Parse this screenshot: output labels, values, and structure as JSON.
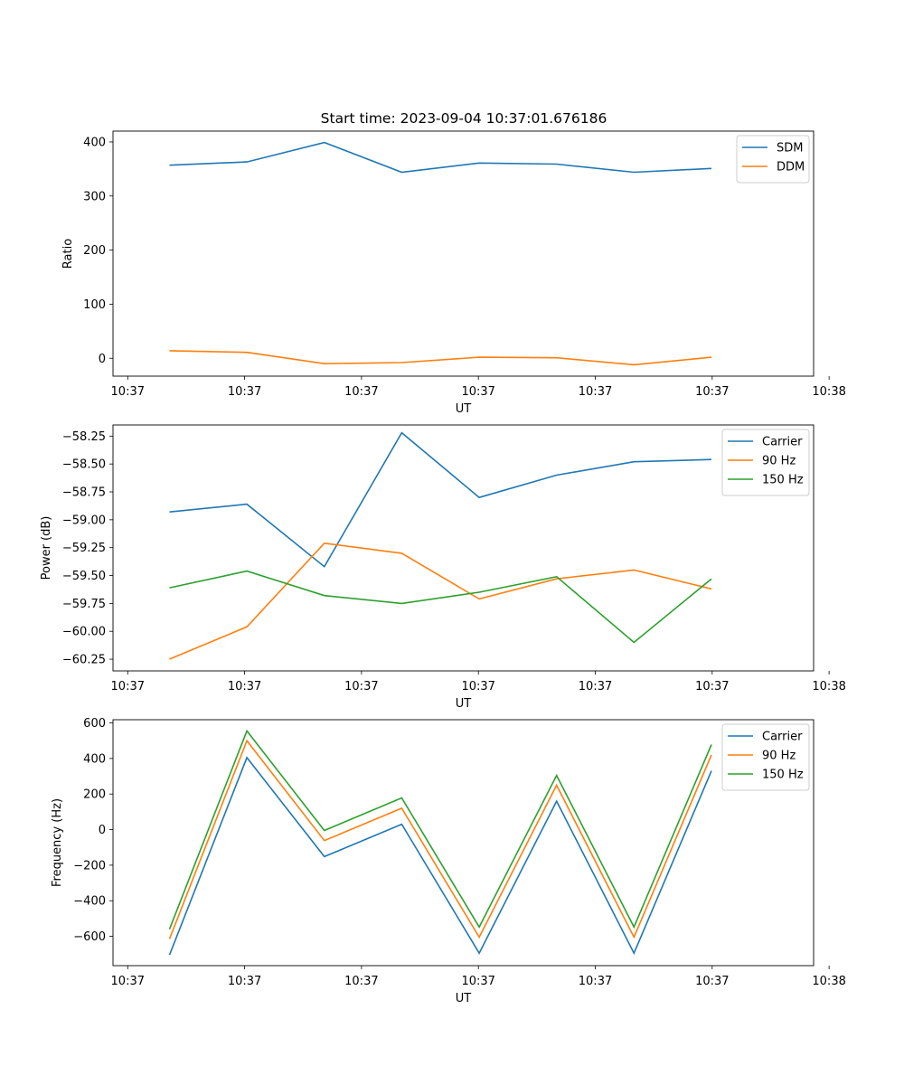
{
  "title": "Start time: 2023-09-04 10:37:01.676186",
  "chart_data": [
    {
      "type": "line",
      "ylabel": "Ratio",
      "xlabel": "UT",
      "x": [
        1,
        2,
        3,
        4,
        5,
        6,
        7,
        8
      ],
      "xlim": [
        0.27,
        9.32
      ],
      "xticks": [
        0.46,
        1.97,
        3.48,
        4.99,
        6.5,
        8.01,
        9.52
      ],
      "xtick_labels": [
        "10:37",
        "10:37",
        "10:37",
        "10:37",
        "10:37",
        "10:37",
        "10:38"
      ],
      "ylim": [
        -33,
        420
      ],
      "yticks": [
        0,
        100,
        200,
        300,
        400
      ],
      "ytick_labels": [
        "0",
        "100",
        "200",
        "300",
        "400"
      ],
      "legend_position": "top-right",
      "series": [
        {
          "name": "SDM",
          "color": "#1f77b4",
          "values": [
            357,
            363,
            399,
            344,
            361,
            359,
            344,
            351
          ]
        },
        {
          "name": "DDM",
          "color": "#ff7f0e",
          "values": [
            14,
            11,
            -10,
            -8,
            2,
            1,
            -12,
            2
          ]
        }
      ]
    },
    {
      "type": "line",
      "ylabel": "Power (dB)",
      "xlabel": "UT",
      "x": [
        1,
        2,
        3,
        4,
        5,
        6,
        7,
        8
      ],
      "xlim": [
        0.27,
        9.32
      ],
      "xticks": [
        0.46,
        1.97,
        3.48,
        4.99,
        6.5,
        8.01,
        9.52
      ],
      "xtick_labels": [
        "10:37",
        "10:37",
        "10:37",
        "10:37",
        "10:37",
        "10:37",
        "10:38"
      ],
      "ylim": [
        -60.355,
        -58.15
      ],
      "yticks": [
        -60.25,
        -60.0,
        -59.75,
        -59.5,
        -59.25,
        -59.0,
        -58.75,
        -58.5,
        -58.25
      ],
      "ytick_labels": [
        "−60.25",
        "−60.00",
        "−59.75",
        "−59.50",
        "−59.25",
        "−59.00",
        "−58.75",
        "−58.50",
        "−58.25"
      ],
      "legend_position": "top-right",
      "series": [
        {
          "name": "Carrier",
          "color": "#1f77b4",
          "values": [
            -58.93,
            -58.86,
            -59.42,
            -58.22,
            -58.8,
            -58.6,
            -58.48,
            -58.46
          ]
        },
        {
          "name": "90 Hz",
          "color": "#ff7f0e",
          "values": [
            -60.25,
            -59.96,
            -59.21,
            -59.3,
            -59.71,
            -59.53,
            -59.45,
            -59.62
          ]
        },
        {
          "name": "150 Hz",
          "color": "#2ca02c",
          "values": [
            -59.61,
            -59.46,
            -59.68,
            -59.75,
            -59.65,
            -59.51,
            -60.1,
            -59.53
          ]
        }
      ]
    },
    {
      "type": "line",
      "ylabel": "Frequency (Hz)",
      "xlabel": "UT",
      "x": [
        1,
        2,
        3,
        4,
        5,
        6,
        7,
        8
      ],
      "xlim": [
        0.27,
        9.32
      ],
      "xticks": [
        0.46,
        1.97,
        3.48,
        4.99,
        6.5,
        8.01,
        9.52
      ],
      "xtick_labels": [
        "10:37",
        "10:37",
        "10:37",
        "10:37",
        "10:37",
        "10:37",
        "10:38"
      ],
      "ylim": [
        -765,
        618
      ],
      "yticks": [
        -600,
        -400,
        -200,
        0,
        200,
        400,
        600
      ],
      "ytick_labels": [
        "−600",
        "−400",
        "−200",
        "0",
        "200",
        "400",
        "600"
      ],
      "legend_position": "top-right",
      "series": [
        {
          "name": "Carrier",
          "color": "#1f77b4",
          "values": [
            -705,
            405,
            -152,
            30,
            -695,
            160,
            -695,
            330
          ]
        },
        {
          "name": "90 Hz",
          "color": "#ff7f0e",
          "values": [
            -615,
            500,
            -62,
            120,
            -605,
            250,
            -605,
            420
          ]
        },
        {
          "name": "150 Hz",
          "color": "#2ca02c",
          "values": [
            -560,
            555,
            -5,
            178,
            -548,
            305,
            -548,
            478
          ]
        }
      ]
    }
  ]
}
